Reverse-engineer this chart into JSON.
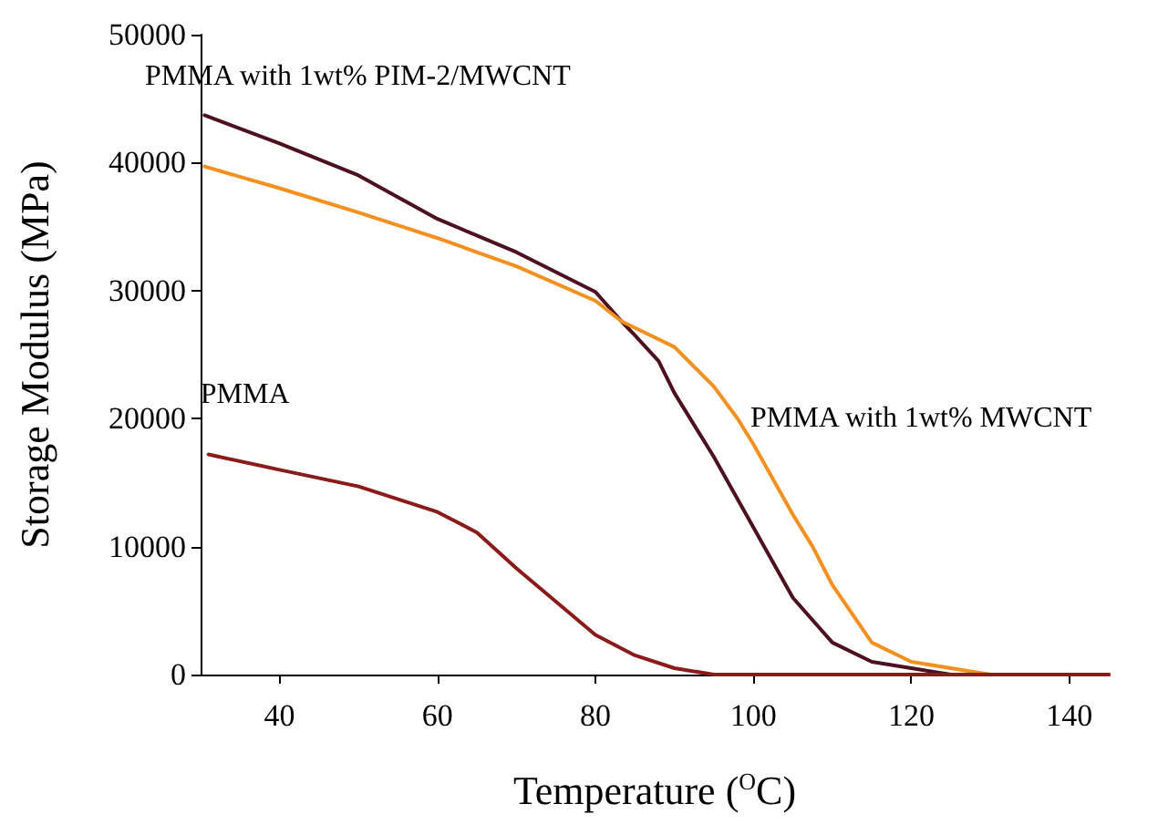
{
  "chart_data": {
    "type": "line",
    "xlabel": "Temperature ($^{O}$C)",
    "ylabel": "Storage Modulus (MPa)",
    "xlim": [
      30,
      145
    ],
    "ylim": [
      0,
      50000
    ],
    "xticks": [
      40,
      60,
      80,
      100,
      120,
      140
    ],
    "yticks": [
      0,
      10000,
      20000,
      30000,
      40000,
      50000
    ],
    "grid": false,
    "legend": false,
    "marker": "none",
    "line_style": "solid",
    "series": [
      {
        "name": "PMMA with 1wt% PIM-2/MWCNT",
        "color": "#4d1020",
        "x": [
          30.5,
          40,
          50,
          60,
          70,
          80,
          83.3,
          85,
          88,
          90,
          95,
          100,
          105,
          110,
          115,
          120,
          125,
          145
        ],
        "values": [
          43700,
          41500,
          39000,
          35600,
          33000,
          29900,
          27600,
          26500,
          24500,
          22000,
          17000,
          11500,
          6000,
          2500,
          1000,
          500,
          0,
          0
        ]
      },
      {
        "name": "PMMA with 1wt% MWCNT",
        "color": "#f39020",
        "x": [
          30.5,
          40,
          50,
          60,
          70,
          80,
          83.3,
          90,
          95,
          98,
          100,
          105,
          107.5,
          110,
          115,
          120,
          125,
          130,
          145
        ],
        "values": [
          39700,
          38000,
          36100,
          34100,
          31900,
          29200,
          27600,
          25600,
          22500,
          20000,
          18000,
          12500,
          10000,
          7000,
          2500,
          1000,
          500,
          0,
          0
        ]
      },
      {
        "name": "PMMA",
        "color": "#8b1a1a",
        "x": [
          31,
          40,
          50,
          60,
          65,
          70,
          75,
          80,
          85,
          90,
          95,
          100,
          145
        ],
        "values": [
          17200,
          16000,
          14700,
          12700,
          11100,
          8300,
          5700,
          3100,
          1500,
          500,
          0,
          0,
          0
        ]
      }
    ]
  }
}
